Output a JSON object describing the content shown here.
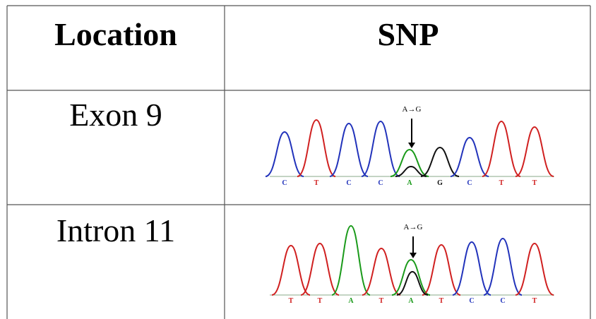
{
  "table": {
    "header": [
      "Location",
      "SNP"
    ],
    "rows": [
      {
        "location": "Exon 9",
        "mutation": "A→G",
        "bases": [
          "C",
          "T",
          "C",
          "C",
          "A",
          "G",
          "C",
          "T",
          "T"
        ]
      },
      {
        "location": "Intron 11",
        "mutation": "A→G",
        "bases": [
          "T",
          "T",
          "A",
          "T",
          "A",
          "T",
          "C",
          "C",
          "T"
        ]
      }
    ]
  }
}
